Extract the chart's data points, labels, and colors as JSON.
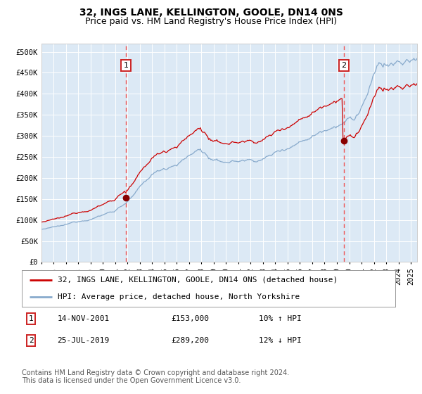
{
  "title": "32, INGS LANE, KELLINGTON, GOOLE, DN14 0NS",
  "subtitle": "Price paid vs. HM Land Registry's House Price Index (HPI)",
  "x_start_year": 1995,
  "x_end_year": 2025,
  "ylim": [
    0,
    520000
  ],
  "yticks": [
    0,
    50000,
    100000,
    150000,
    200000,
    250000,
    300000,
    350000,
    400000,
    450000,
    500000
  ],
  "ytick_labels": [
    "£0",
    "£50K",
    "£100K",
    "£150K",
    "£200K",
    "£250K",
    "£300K",
    "£350K",
    "£400K",
    "£450K",
    "£500K"
  ],
  "bg_color": "#dce9f5",
  "fig_bg_color": "#ffffff",
  "grid_color": "#ffffff",
  "red_line_color": "#cc0000",
  "blue_line_color": "#88aacc",
  "marker_color": "#880000",
  "vline_color": "#ee5555",
  "sale1_year": 2001.87,
  "sale1_price": 153000,
  "sale1_date": "14-NOV-2001",
  "sale1_pct": "10% ↑ HPI",
  "sale2_year": 2019.57,
  "sale2_price": 289200,
  "sale2_date": "25-JUL-2019",
  "sale2_pct": "12% ↓ HPI",
  "legend_line1": "32, INGS LANE, KELLINGTON, GOOLE, DN14 0NS (detached house)",
  "legend_line2": "HPI: Average price, detached house, North Yorkshire",
  "footer": "Contains HM Land Registry data © Crown copyright and database right 2024.\nThis data is licensed under the Open Government Licence v3.0.",
  "title_fontsize": 10,
  "subtitle_fontsize": 9,
  "tick_fontsize": 7.5,
  "legend_fontsize": 8,
  "footer_fontsize": 7,
  "annot_fontsize": 8
}
